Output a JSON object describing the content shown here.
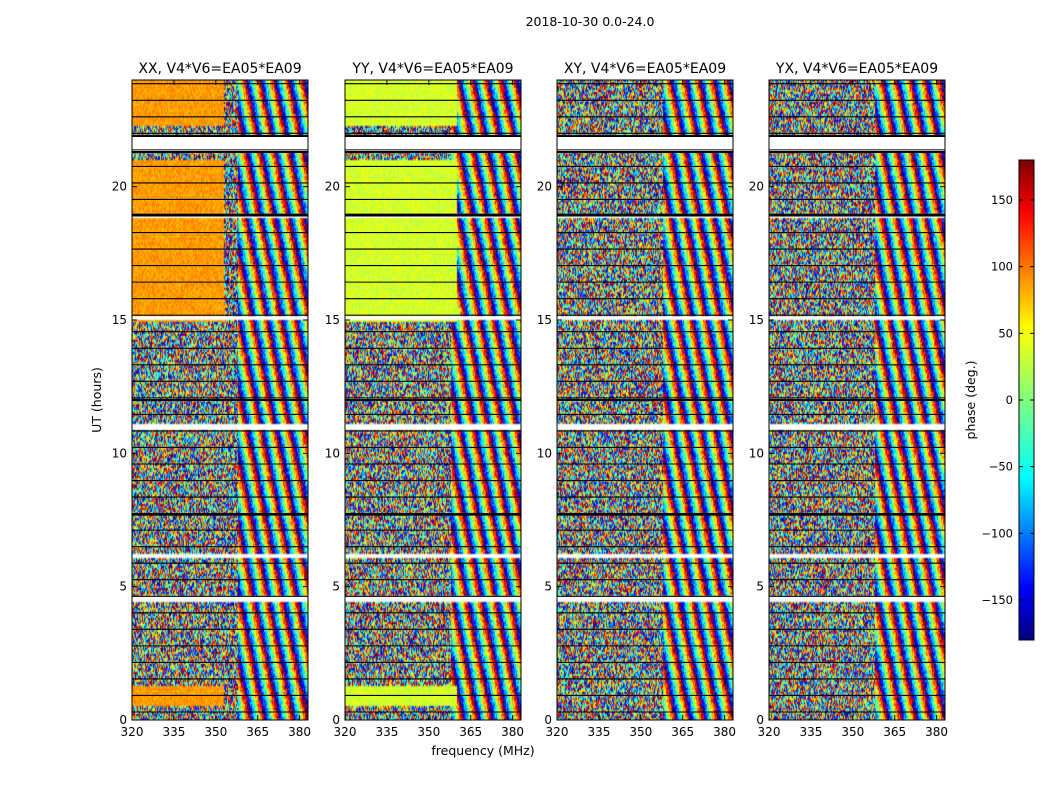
{
  "figure": {
    "title": "2018-10-30 0.0-24.0",
    "xlabel": "frequency (MHz)",
    "ylabel": "UT (hours)"
  },
  "chart_data": {
    "type": "heatmap",
    "title": "2018-10-30 0.0-24.0",
    "xlabel": "frequency (MHz)",
    "ylabel": "UT (hours)",
    "xlim": [
      320,
      383
    ],
    "ylim": [
      0,
      24
    ],
    "xticks": [
      "320",
      "335",
      "350",
      "365",
      "380"
    ],
    "yticks": [
      "0",
      "5",
      "10",
      "15",
      "20"
    ],
    "panels": [
      {
        "title": "XX, V4*V6=EA05*EA09",
        "coherent_until_mhz": 353,
        "base_phase": 80
      },
      {
        "title": "YY, V4*V6=EA05*EA09",
        "coherent_until_mhz": 360,
        "base_phase": 30
      },
      {
        "title": "XY, V4*V6=EA05*EA09",
        "coherent_until_mhz": 320,
        "base_phase": 0
      },
      {
        "title": "YX, V4*V6=EA05*EA09",
        "coherent_until_mhz": 320,
        "base_phase": 0
      }
    ],
    "blank_ut_ranges": [
      [
        21.3,
        21.9
      ],
      [
        4.45,
        4.65
      ],
      [
        6.05,
        6.2
      ],
      [
        10.9,
        11.1
      ],
      [
        15.0,
        15.15
      ],
      [
        18.85,
        18.95
      ]
    ],
    "coherent_ut_ranges": [
      [
        0.5,
        1.3
      ],
      [
        14.9,
        21.0
      ],
      [
        22.3,
        24.0
      ]
    ],
    "colorbar": {
      "label": "phase (deg.)",
      "vmin": -180,
      "vmax": 180,
      "ticks": [
        150,
        100,
        50,
        0,
        -50,
        -100,
        -150
      ],
      "tick_labels": [
        "150",
        "100",
        "50",
        "0",
        "−50",
        "−100",
        "−150"
      ],
      "colormap": [
        "#00007f",
        "#0000ff",
        "#007fff",
        "#00ffff",
        "#7fff7f",
        "#ffff00",
        "#ff7f00",
        "#ff0000",
        "#7f0000"
      ]
    }
  }
}
